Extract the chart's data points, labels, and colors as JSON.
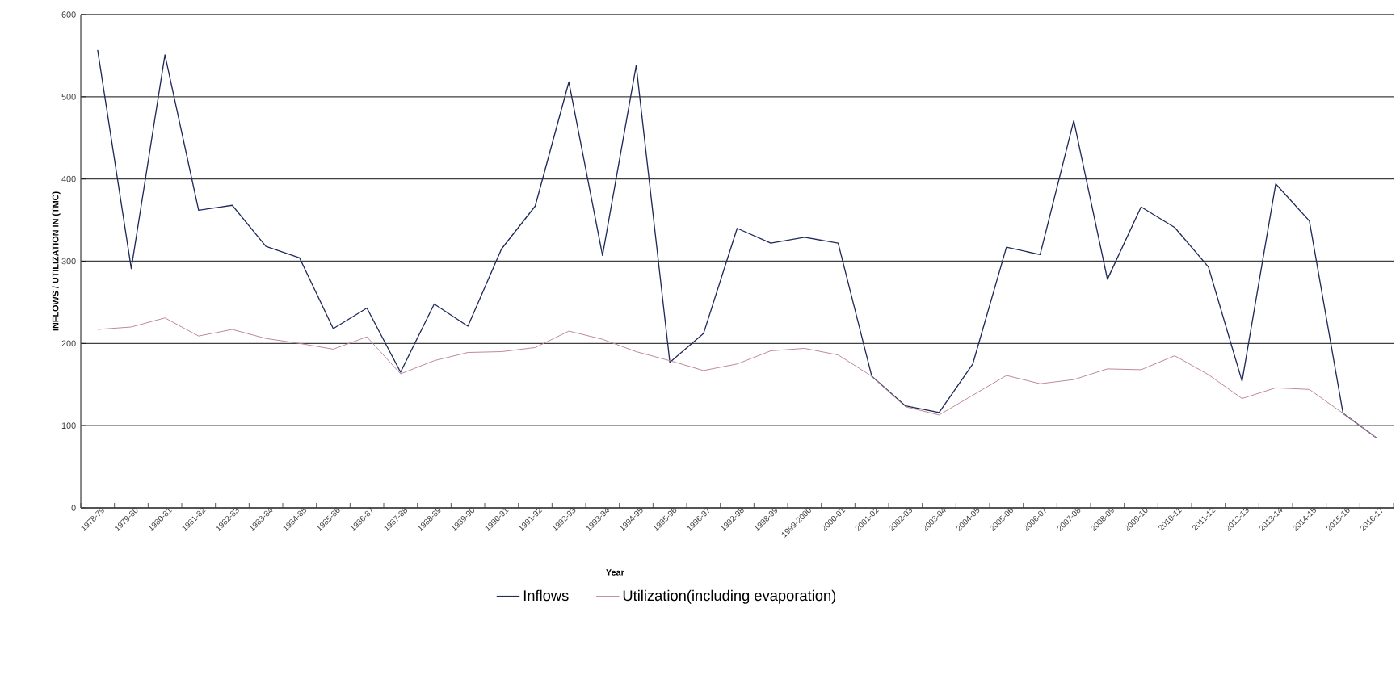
{
  "chart_data": {
    "type": "line",
    "xlabel": "Year",
    "ylabel": "INFLOWS / UTILIZATION IN (TMC)",
    "categories": [
      "1978-79",
      "1979-80",
      "1980-81",
      "1981-82",
      "1982-83",
      "1983-84",
      "1984-85",
      "1985-86",
      "1986-87",
      "1987-88",
      "1988-89",
      "1989-90",
      "1990-91",
      "1991-92",
      "1992-93",
      "1993-94",
      "1994-95",
      "1995-96",
      "1996-97",
      "1992-98",
      "1998-99",
      "1999-2000",
      "2000-01",
      "2001-02",
      "2002-03",
      "2003-04",
      "2004-05",
      "2005-06",
      "2006-07",
      "2007-08",
      "2008-09",
      "2009-10",
      "2010-11",
      "2011-12",
      "2012-13",
      "2013-14",
      "2014-15",
      "2015-16",
      "2016-17"
    ],
    "series": [
      {
        "name": "Inflows",
        "color": "#1f2a5a",
        "values": [
          557,
          291,
          551,
          362,
          368,
          318,
          304,
          218,
          243,
          165,
          248,
          221,
          315,
          367,
          518,
          307,
          538,
          177,
          212,
          340,
          322,
          329,
          322,
          160,
          124,
          116,
          175,
          317,
          308,
          471,
          278,
          366,
          341,
          293,
          154,
          394,
          349,
          115,
          85
        ]
      },
      {
        "name": "Utilization(including evaporation)",
        "color": "#c08898",
        "values": [
          217,
          220,
          231,
          209,
          217,
          206,
          200,
          193,
          208,
          163,
          179,
          189,
          190,
          195,
          215,
          205,
          190,
          179,
          167,
          175,
          191,
          194,
          186,
          160,
          123,
          113,
          137,
          161,
          151,
          156,
          169,
          168,
          185,
          162,
          133,
          146,
          144,
          115,
          85
        ]
      }
    ],
    "ylim": [
      0,
      600
    ],
    "yticks": [
      0,
      100,
      200,
      300,
      400,
      500,
      600
    ],
    "grid": "y",
    "legend": "bottom"
  }
}
